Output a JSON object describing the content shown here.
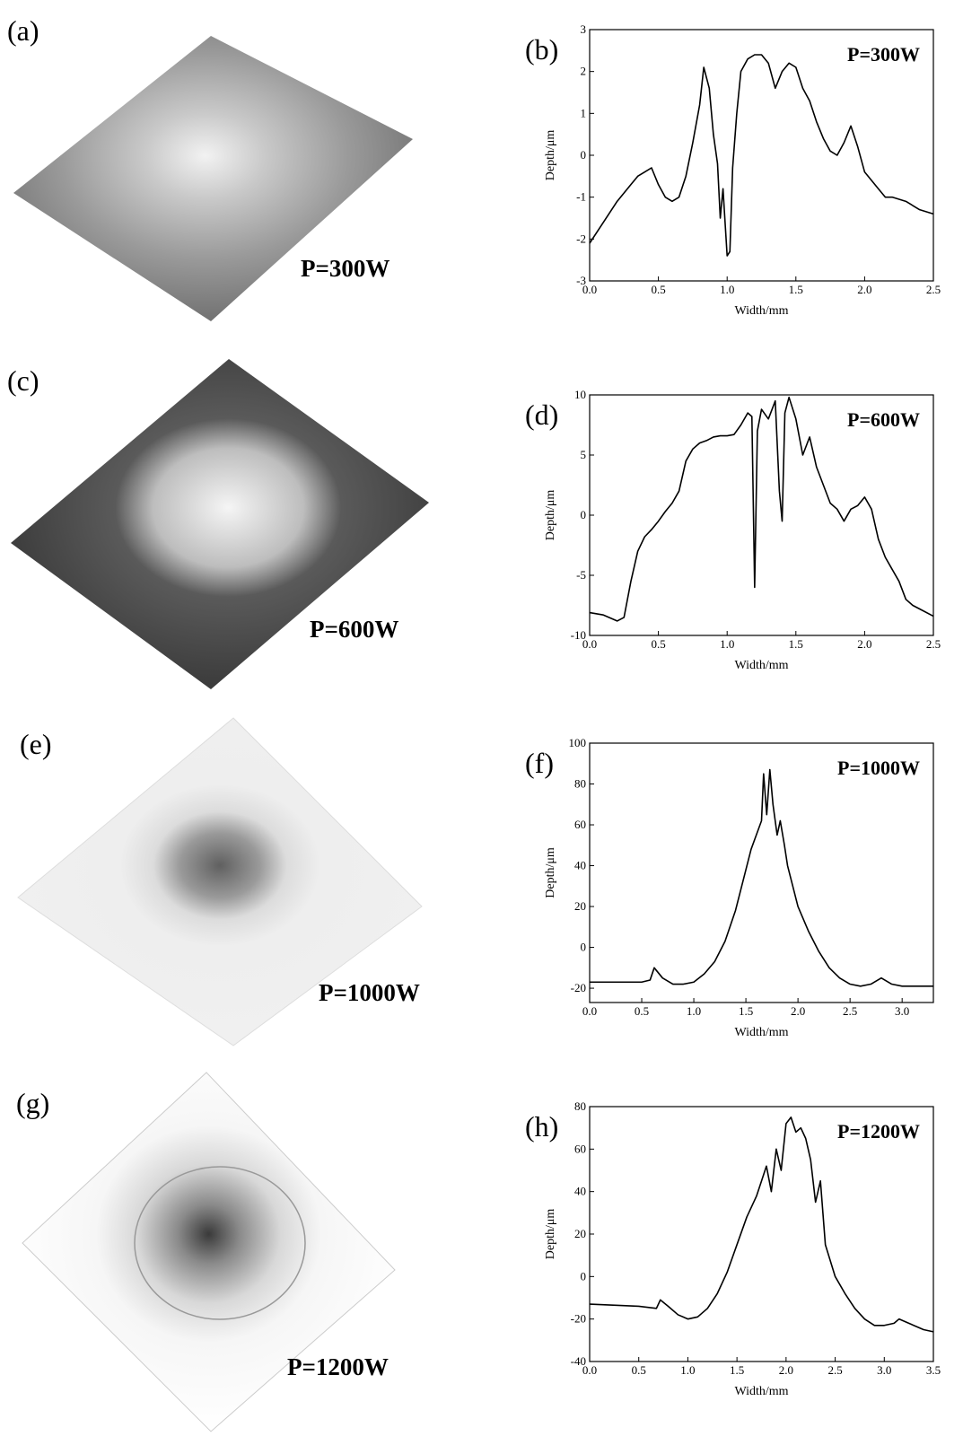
{
  "images": [
    {
      "label": "(a)",
      "caption": "P=300W"
    },
    {
      "label": "(c)",
      "caption": "P=600W"
    },
    {
      "label": "(e)",
      "caption": "P=1000W"
    },
    {
      "label": "(g)",
      "caption": "P=1200W"
    }
  ],
  "chart_data": [
    {
      "type": "line",
      "label": "(b)",
      "annotation": "P=300W",
      "x_label": "Width/mm",
      "y_label": "Depth/μm",
      "color": "#000000",
      "xlim": [
        0,
        2.5
      ],
      "xticks": [
        {
          "value": 0,
          "label": "0.0"
        },
        0.5,
        {
          "value": 1,
          "label": "1.0"
        },
        1.5,
        {
          "value": 2,
          "label": "2.0"
        },
        2.5
      ],
      "ylim": [
        -3,
        3
      ],
      "yticks": [
        -3,
        -2,
        -1,
        0,
        1,
        2,
        3
      ],
      "x": [
        0,
        0.1,
        0.2,
        0.3,
        0.35,
        0.4,
        0.45,
        0.5,
        0.55,
        0.6,
        0.65,
        0.7,
        0.75,
        0.8,
        0.83,
        0.87,
        0.9,
        0.93,
        0.95,
        0.97,
        1.0,
        1.02,
        1.04,
        1.07,
        1.1,
        1.15,
        1.2,
        1.25,
        1.3,
        1.35,
        1.4,
        1.45,
        1.5,
        1.55,
        1.6,
        1.65,
        1.7,
        1.75,
        1.8,
        1.85,
        1.9,
        1.95,
        2.0,
        2.05,
        2.1,
        2.15,
        2.2,
        2.3,
        2.4,
        2.5
      ],
      "values": [
        -2.1,
        -1.6,
        -1.1,
        -0.7,
        -0.5,
        -0.4,
        -0.3,
        -0.7,
        -1.0,
        -1.1,
        -1.0,
        -0.5,
        0.3,
        1.2,
        2.1,
        1.6,
        0.5,
        -0.2,
        -1.5,
        -0.8,
        -2.4,
        -2.3,
        -0.3,
        1.0,
        2.0,
        2.3,
        2.4,
        2.4,
        2.2,
        1.6,
        2.0,
        2.2,
        2.1,
        1.6,
        1.3,
        0.8,
        0.4,
        0.1,
        0.0,
        0.3,
        0.7,
        0.2,
        -0.4,
        -0.6,
        -0.8,
        -1.0,
        -1.0,
        -1.1,
        -1.3,
        -1.4
      ]
    },
    {
      "type": "line",
      "label": "(d)",
      "annotation": "P=600W",
      "x_label": "Width/mm",
      "y_label": "Depth/μm",
      "color": "#000000",
      "xlim": [
        0,
        2.5
      ],
      "xticks": [
        {
          "value": 0,
          "label": "0.0"
        },
        0.5,
        {
          "value": 1,
          "label": "1.0"
        },
        1.5,
        {
          "value": 2,
          "label": "2.0"
        },
        2.5
      ],
      "ylim": [
        -10,
        10
      ],
      "yticks": [
        -10,
        -5,
        0,
        5,
        10
      ],
      "x": [
        0,
        0.1,
        0.2,
        0.25,
        0.3,
        0.35,
        0.4,
        0.45,
        0.5,
        0.55,
        0.6,
        0.65,
        0.7,
        0.75,
        0.8,
        0.85,
        0.9,
        0.95,
        1.0,
        1.05,
        1.1,
        1.15,
        1.18,
        1.2,
        1.22,
        1.25,
        1.3,
        1.35,
        1.38,
        1.4,
        1.42,
        1.45,
        1.5,
        1.55,
        1.6,
        1.65,
        1.7,
        1.75,
        1.8,
        1.85,
        1.9,
        1.95,
        2.0,
        2.05,
        2.1,
        2.15,
        2.2,
        2.25,
        2.3,
        2.35,
        2.4,
        2.5
      ],
      "values": [
        -8.1,
        -8.3,
        -8.8,
        -8.5,
        -5.5,
        -3.0,
        -1.8,
        -1.2,
        -0.5,
        0.3,
        1.0,
        2.0,
        4.5,
        5.5,
        6.0,
        6.2,
        6.5,
        6.6,
        6.6,
        6.7,
        7.5,
        8.5,
        8.2,
        -6.0,
        7.0,
        8.8,
        8.0,
        9.5,
        2.0,
        -0.5,
        8.5,
        9.8,
        8.0,
        5.0,
        6.5,
        4.0,
        2.5,
        1.0,
        0.5,
        -0.5,
        0.5,
        0.8,
        1.5,
        0.5,
        -2.0,
        -3.5,
        -4.5,
        -5.5,
        -7.0,
        -7.5,
        -7.8,
        -8.4
      ]
    },
    {
      "type": "line",
      "label": "(f)",
      "annotation": "P=1000W",
      "x_label": "Width/mm",
      "y_label": "Depth/μm",
      "color": "#000000",
      "xlim": [
        0,
        3.3
      ],
      "xticks": [
        {
          "value": 0,
          "label": "0.0"
        },
        0.5,
        {
          "value": 1,
          "label": "1.0"
        },
        1.5,
        {
          "value": 2,
          "label": "2.0"
        },
        2.5,
        {
          "value": 3,
          "label": "3.0"
        }
      ],
      "ylim": [
        -27,
        100
      ],
      "yticks": [
        -20,
        0,
        20,
        40,
        60,
        80,
        100
      ],
      "x": [
        0,
        0.5,
        0.58,
        0.62,
        0.7,
        0.8,
        0.9,
        1.0,
        1.1,
        1.2,
        1.3,
        1.4,
        1.5,
        1.55,
        1.6,
        1.65,
        1.67,
        1.7,
        1.73,
        1.76,
        1.8,
        1.83,
        1.87,
        1.9,
        1.95,
        2.0,
        2.1,
        2.2,
        2.3,
        2.4,
        2.5,
        2.6,
        2.7,
        2.8,
        2.9,
        3.0,
        3.1,
        3.3
      ],
      "values": [
        -17,
        -17,
        -16,
        -10,
        -15,
        -18,
        -18,
        -17,
        -13,
        -7,
        3,
        18,
        38,
        48,
        55,
        62,
        85,
        65,
        87,
        70,
        55,
        62,
        50,
        40,
        30,
        20,
        8,
        -2,
        -10,
        -15,
        -18,
        -19,
        -18,
        -15,
        -18,
        -19,
        -19,
        -19
      ]
    },
    {
      "type": "line",
      "label": "(h)",
      "annotation": "P=1200W",
      "x_label": "Width/mm",
      "y_label": "Depth/μm",
      "color": "#000000",
      "xlim": [
        0,
        3.5
      ],
      "xticks": [
        {
          "value": 0,
          "label": "0.0"
        },
        0.5,
        {
          "value": 1,
          "label": "1.0"
        },
        1.5,
        {
          "value": 2,
          "label": "2.0"
        },
        2.5,
        {
          "value": 3,
          "label": "3.0"
        },
        3.5
      ],
      "ylim": [
        -40,
        80
      ],
      "yticks": [
        -40,
        -20,
        0,
        20,
        40,
        60,
        80
      ],
      "x": [
        0,
        0.5,
        0.68,
        0.72,
        0.8,
        0.9,
        1.0,
        1.1,
        1.2,
        1.3,
        1.4,
        1.5,
        1.6,
        1.7,
        1.75,
        1.8,
        1.85,
        1.9,
        1.95,
        2.0,
        2.05,
        2.1,
        2.15,
        2.2,
        2.25,
        2.3,
        2.35,
        2.4,
        2.5,
        2.6,
        2.7,
        2.8,
        2.9,
        3.0,
        3.1,
        3.15,
        3.25,
        3.4,
        3.5
      ],
      "values": [
        -13,
        -14,
        -15,
        -11,
        -14,
        -18,
        -20,
        -19,
        -15,
        -8,
        2,
        15,
        28,
        38,
        45,
        52,
        40,
        60,
        50,
        72,
        75,
        68,
        70,
        65,
        55,
        35,
        45,
        15,
        0,
        -8,
        -15,
        -20,
        -23,
        -23,
        -22,
        -20,
        -22,
        -25,
        -26
      ]
    }
  ]
}
